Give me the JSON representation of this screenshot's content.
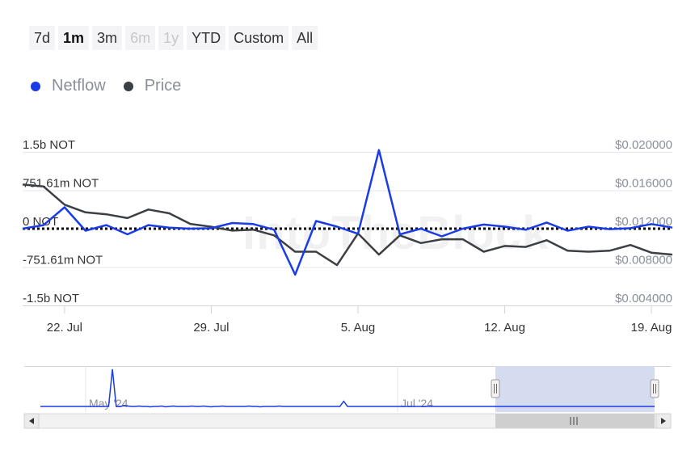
{
  "range_selector": {
    "buttons": [
      {
        "label": "7d",
        "state": "normal"
      },
      {
        "label": "1m",
        "state": "active"
      },
      {
        "label": "3m",
        "state": "normal"
      },
      {
        "label": "6m",
        "state": "disabled"
      },
      {
        "label": "1y",
        "state": "disabled"
      },
      {
        "label": "YTD",
        "state": "normal"
      },
      {
        "label": "Custom",
        "state": "normal"
      },
      {
        "label": "All",
        "state": "normal"
      }
    ]
  },
  "watermark": "IntoTheBlock",
  "colors": {
    "netflow": "#1a3ce6",
    "price": "#3c3f44",
    "navigator_mask": "#d6dcf0",
    "zero_line": "#000000"
  },
  "chart_data": {
    "type": "line",
    "x_ticks": [
      "22. Jul",
      "29. Jul",
      "5. Aug",
      "12. Aug",
      "19. Aug"
    ],
    "x_range": [
      "2024-07-20",
      "2024-08-20"
    ],
    "left_axis": {
      "ticks": [
        "1.5b NOT",
        "751.61m NOT",
        "0 NOT",
        "-751.61m NOT",
        "-1.5b NOT"
      ],
      "ylim": [
        -1503220000,
        1503220000
      ]
    },
    "right_axis": {
      "ticks": [
        "$0.020000",
        "$0.016000",
        "$0.012000",
        "$0.008000",
        "$0.004000"
      ],
      "ylim": [
        0.004,
        0.02
      ]
    },
    "zero_line": "dotted",
    "series": [
      {
        "name": "Netflow",
        "axis": "left",
        "x": [
          "2024-07-20",
          "2024-07-21",
          "2024-07-22",
          "2024-07-23",
          "2024-07-24",
          "2024-07-25",
          "2024-07-26",
          "2024-07-27",
          "2024-07-28",
          "2024-07-29",
          "2024-07-30",
          "2024-07-31",
          "2024-08-01",
          "2024-08-02",
          "2024-08-03",
          "2024-08-04",
          "2024-08-05",
          "2024-08-06",
          "2024-08-07",
          "2024-08-08",
          "2024-08-09",
          "2024-08-10",
          "2024-08-11",
          "2024-08-12",
          "2024-08-13",
          "2024-08-14",
          "2024-08-15",
          "2024-08-16",
          "2024-08-17",
          "2024-08-18",
          "2024-08-19",
          "2024-08-20"
        ],
        "values": [
          0,
          70000000,
          420000000,
          -40000000,
          70000000,
          -110000000,
          70000000,
          20000000,
          0,
          10000000,
          110000000,
          90000000,
          -20000000,
          -900000000,
          150000000,
          40000000,
          -100000000,
          1540000000,
          -110000000,
          0,
          -150000000,
          0,
          80000000,
          40000000,
          -20000000,
          120000000,
          -40000000,
          40000000,
          -10000000,
          10000000,
          90000000,
          20000000
        ]
      },
      {
        "name": "Price",
        "axis": "right",
        "x": [
          "2024-07-20",
          "2024-07-21",
          "2024-07-22",
          "2024-07-23",
          "2024-07-24",
          "2024-07-25",
          "2024-07-26",
          "2024-07-27",
          "2024-07-28",
          "2024-07-29",
          "2024-07-30",
          "2024-07-31",
          "2024-08-01",
          "2024-08-02",
          "2024-08-03",
          "2024-08-04",
          "2024-08-05",
          "2024-08-06",
          "2024-08-07",
          "2024-08-08",
          "2024-08-09",
          "2024-08-10",
          "2024-08-11",
          "2024-08-12",
          "2024-08-13",
          "2024-08-14",
          "2024-08-15",
          "2024-08-16",
          "2024-08-17",
          "2024-08-18",
          "2024-08-19",
          "2024-08-20"
        ],
        "values": [
          0.0166,
          0.0164,
          0.0145,
          0.0137,
          0.0135,
          0.0131,
          0.014,
          0.0136,
          0.0125,
          0.0122,
          0.0118,
          0.0119,
          0.0113,
          0.0096,
          0.0096,
          0.0082,
          0.0115,
          0.0093,
          0.0113,
          0.0105,
          0.0109,
          0.0109,
          0.0096,
          0.0102,
          0.0101,
          0.0108,
          0.0097,
          0.0096,
          0.0097,
          0.0103,
          0.0095,
          0.0093
        ]
      }
    ],
    "navigator": {
      "labels": [
        "May '24",
        "Jul '24"
      ],
      "series_name": "Netflow",
      "values": [
        0.0,
        0.0,
        0.0,
        0.0,
        0.0,
        0.0,
        0.0,
        0.0,
        0.0,
        0.0,
        0.0,
        0.0,
        0.0,
        0.0,
        0.0,
        0.0,
        0.0,
        0.0,
        0.0,
        1.0,
        0.0,
        0.0,
        0.02,
        0.01,
        0.0,
        0.0,
        0.01,
        0.0,
        0.0,
        -0.01,
        0.0,
        0.0,
        0.01,
        -0.01,
        0.0,
        0.01,
        0.0,
        0.0,
        0.0,
        0.0,
        0.01,
        0.0,
        0.0,
        0.01,
        0.0,
        -0.01,
        0.0,
        0.0,
        0.01,
        0.0,
        0.0,
        0.0,
        0.0,
        0.0,
        0.0,
        0.01,
        0.0,
        0.0,
        -0.01,
        0.0,
        0.0,
        0.0,
        0.0,
        0.01,
        0.0,
        0.0,
        0.0,
        0.0,
        0.0,
        0.0,
        0.0,
        0.0,
        0.0,
        0.0,
        0.0,
        0.0,
        0.0,
        0.0,
        0.0,
        0.0,
        0.14,
        0.0,
        0.0,
        0.0,
        0.0,
        0.0,
        0.0,
        0.0,
        0.0,
        0.0,
        0.0,
        0.0,
        0.0,
        0.0,
        0.0,
        0.0,
        0.0,
        0.0,
        0.0,
        0.0,
        0.0,
        0.0,
        0.0,
        0.0,
        0.0,
        0.0,
        0.0,
        0.0,
        0.0,
        0.0,
        0.0,
        0.0,
        0.0,
        0.0,
        0.0,
        0.0,
        0.0,
        0.0,
        0.0,
        0.0,
        0.0,
        0.0,
        0.0,
        0.0,
        0.0,
        0.0,
        0.0,
        0.0,
        0.0,
        0.0,
        0.0,
        0.0,
        0.0,
        0.0,
        0.0,
        0.0,
        0.0,
        0.0,
        0.0,
        0.0,
        0.0,
        0.0,
        0.0,
        0.0,
        0.0,
        0.0,
        0.0,
        0.0,
        0.0,
        0.0,
        0.0,
        0.0,
        0.0,
        0.0,
        0.0,
        0.0,
        0.0,
        0.0,
        0.0,
        0.0,
        0.0,
        0.0,
        0.0
      ]
    }
  },
  "legend": [
    {
      "label": "Netflow",
      "color": "#1a3ce6"
    },
    {
      "label": "Price",
      "color": "#3c3f44"
    }
  ],
  "navigator_ui": {
    "handle_icon": "grip-lines-icon",
    "scroll_left_icon": "arrow-left-icon",
    "scroll_right_icon": "arrow-right-icon",
    "thumb_icon": "grip-lines-icon"
  }
}
